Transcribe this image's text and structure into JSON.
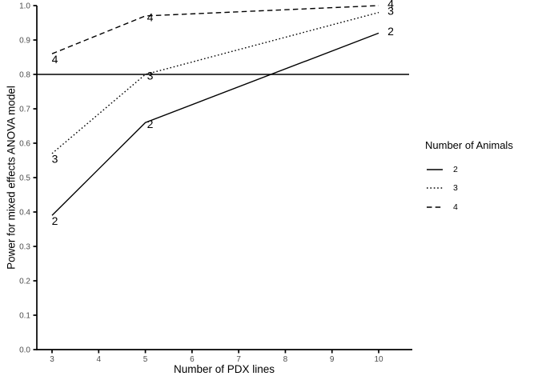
{
  "chart_data": {
    "type": "line",
    "title": "",
    "xlabel": "Number of PDX lines",
    "ylabel": "Power for mixed effects ANOVA model",
    "x_ticks": [
      "3",
      "4",
      "5",
      "6",
      "7",
      "8",
      "9",
      "10"
    ],
    "y_ticks": [
      "0.0",
      "0.1",
      "0.2",
      "0.3",
      "0.4",
      "0.5",
      "0.6",
      "0.7",
      "0.8",
      "0.9",
      "1.0"
    ],
    "xlim": [
      3,
      10
    ],
    "ylim": [
      0.0,
      1.0
    ],
    "grid": false,
    "reference_line_y": 0.8,
    "series": [
      {
        "name": "2",
        "linetype": "solid",
        "x": [
          3,
          5,
          10
        ],
        "y": [
          0.39,
          0.66,
          0.92
        ],
        "point_labels": [
          "2",
          "2",
          "2"
        ]
      },
      {
        "name": "3",
        "linetype": "dotted",
        "x": [
          3,
          5,
          10
        ],
        "y": [
          0.57,
          0.8,
          0.98
        ],
        "point_labels": [
          "3",
          "3",
          "3"
        ]
      },
      {
        "name": "4",
        "linetype": "dashed",
        "x": [
          3,
          5,
          10
        ],
        "y": [
          0.86,
          0.97,
          1.0
        ],
        "point_labels": [
          "4",
          "4",
          "4"
        ]
      }
    ],
    "legend": {
      "title": "Number of Animals",
      "position": "right",
      "entries": [
        {
          "label": "2",
          "linetype": "solid"
        },
        {
          "label": "3",
          "linetype": "dotted"
        },
        {
          "label": "4",
          "linetype": "dashed"
        }
      ]
    },
    "colors": {
      "line": "#000000",
      "axis": "#000000",
      "tick_text": "#4d4d4d",
      "background": "#ffffff"
    }
  }
}
